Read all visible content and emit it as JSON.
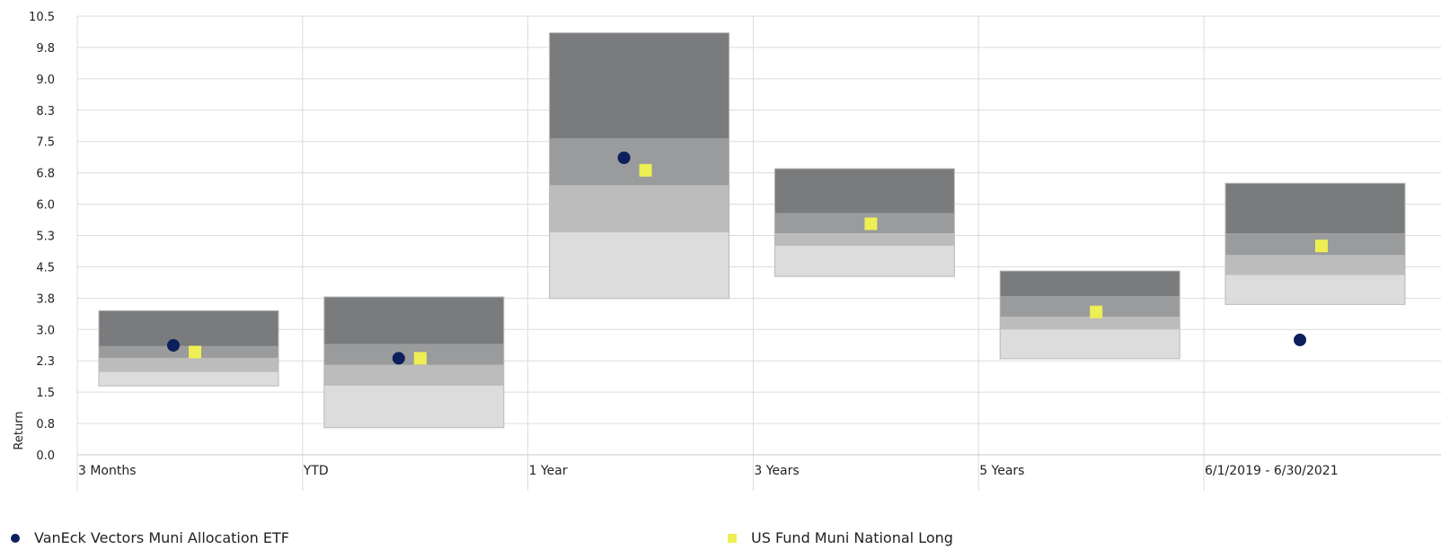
{
  "chart_data": {
    "type": "box",
    "ylabel": "Return",
    "xlabel": "",
    "ylim": [
      0,
      10.5
    ],
    "yticks": [
      "0.0",
      "0.8",
      "1.5",
      "2.3",
      "3.0",
      "3.8",
      "4.5",
      "5.3",
      "6.0",
      "6.8",
      "7.5",
      "8.3",
      "9.0",
      "9.8",
      "10.5"
    ],
    "grid": true,
    "categories": [
      "3 Months",
      "YTD",
      "1 Year",
      "3 Years",
      "5 Years",
      "6/1/2019 - 6/30/2021"
    ],
    "quartile_colors": [
      "#7a7b7c",
      "#9a9b9c",
      "#bcbcbc",
      "#dcdcdc"
    ],
    "quartile_bands": [
      {
        "category": "3 Months",
        "bounds": [
          3.45,
          2.6,
          2.32,
          1.98,
          1.65
        ]
      },
      {
        "category": "YTD",
        "bounds": [
          3.78,
          2.65,
          2.15,
          1.65,
          0.65
        ]
      },
      {
        "category": "1 Year",
        "bounds": [
          10.1,
          7.58,
          6.45,
          5.32,
          3.74
        ]
      },
      {
        "category": "3 Years",
        "bounds": [
          6.85,
          5.78,
          5.3,
          5.0,
          4.27
        ]
      },
      {
        "category": "5 Years",
        "bounds": [
          4.4,
          3.8,
          3.3,
          3.0,
          2.3
        ]
      },
      {
        "category": "6/1/2019 - 6/30/2021",
        "bounds": [
          6.5,
          5.3,
          4.78,
          4.3,
          3.6
        ]
      }
    ],
    "series": [
      {
        "name": "VanEck Vectors Muni Allocation ETF",
        "marker": "circle",
        "color": "#0d1f5c",
        "values": [
          2.62,
          2.31,
          7.11,
          null,
          null,
          2.75
        ]
      },
      {
        "name": "US Fund Muni National Long",
        "marker": "square",
        "color": "#eeee55",
        "values": [
          2.46,
          2.31,
          6.81,
          5.53,
          3.42,
          5.0
        ]
      }
    ],
    "legend_position": "bottom"
  }
}
